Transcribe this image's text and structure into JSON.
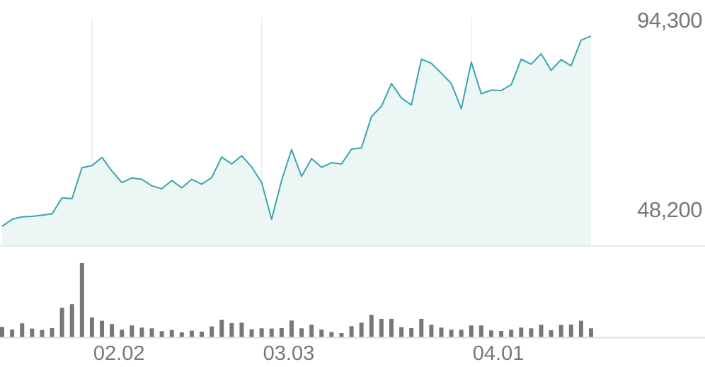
{
  "chart_data": [
    {
      "type": "area",
      "y_axis_labels": {
        "max": "94,300",
        "min": "48,200"
      },
      "ylim": [
        48200,
        94300
      ],
      "grid": "vertical lines at date labels",
      "colors": {
        "line": "#3aa5b0",
        "fill": "#ecf6f5",
        "grid": "#ececec"
      },
      "values": [
        48200,
        49900,
        50500,
        50600,
        50900,
        51200,
        55100,
        54900,
        62400,
        62900,
        64900,
        61600,
        58800,
        59900,
        59600,
        58000,
        57300,
        59300,
        57500,
        59600,
        58400,
        60000,
        65000,
        63300,
        65300,
        62600,
        58800,
        49900,
        59300,
        66800,
        60300,
        64600,
        62500,
        63600,
        63300,
        66900,
        67200,
        74800,
        77300,
        82800,
        79300,
        77600,
        88700,
        87700,
        85300,
        82800,
        76700,
        88000,
        80300,
        81200,
        81100,
        82500,
        88700,
        87500,
        90000,
        86000,
        88600,
        87100,
        93300,
        94300
      ]
    },
    {
      "type": "bar",
      "colors": {
        "bar": "#777777"
      },
      "values": [
        44,
        33,
        59,
        37,
        31,
        39,
        125,
        140,
        314,
        84,
        70,
        56,
        32,
        50,
        41,
        38,
        26,
        31,
        21,
        28,
        24,
        46,
        74,
        60,
        62,
        34,
        38,
        37,
        39,
        71,
        38,
        53,
        33,
        22,
        18,
        47,
        62,
        95,
        78,
        78,
        43,
        39,
        78,
        53,
        41,
        32,
        32,
        50,
        50,
        29,
        27,
        32,
        41,
        38,
        53,
        30,
        52,
        54,
        70,
        38
      ]
    }
  ],
  "x_axis": {
    "ticks": [
      {
        "label": "02.02",
        "index": 9
      },
      {
        "label": "03.03",
        "index": 26
      },
      {
        "label": "04.01",
        "index": 47
      }
    ]
  }
}
